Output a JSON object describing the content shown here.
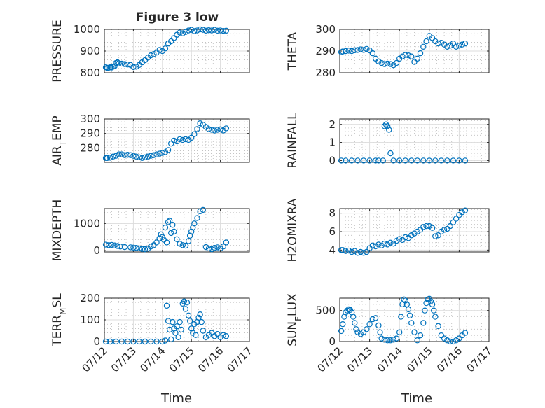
{
  "figure": {
    "title": "Figure 3 low",
    "xlabel": "Time"
  },
  "colors": {
    "marker": "#0072BD",
    "axis": "#262626",
    "grid": "#b0b0b0"
  },
  "chart_data": [
    {
      "type": "scatter",
      "ylabel": "PRESSURE",
      "ylim": [
        800,
        1000
      ],
      "yticks": [
        800,
        900,
        1000
      ],
      "xlim": [
        "07/12",
        "07/17"
      ],
      "xticklabels": [
        "07/12",
        "07/13",
        "07/14",
        "07/15",
        "07/16",
        "07/17"
      ],
      "grid": true,
      "x": [
        0.05,
        0.1,
        0.15,
        0.2,
        0.25,
        0.3,
        0.35,
        0.4,
        0.45,
        0.5,
        0.6,
        0.7,
        0.8,
        0.9,
        1.0,
        1.1,
        1.2,
        1.3,
        1.4,
        1.5,
        1.6,
        1.7,
        1.8,
        1.9,
        2.0,
        2.1,
        2.2,
        2.3,
        2.4,
        2.5,
        2.6,
        2.7,
        2.8,
        2.9,
        3.0,
        3.1,
        3.2,
        3.3,
        3.4,
        3.5,
        3.6,
        3.7,
        3.8,
        3.9,
        4.0,
        4.1,
        4.2
      ],
      "y": [
        825,
        822,
        823,
        825,
        824,
        828,
        830,
        845,
        848,
        843,
        842,
        840,
        838,
        836,
        826,
        828,
        836,
        848,
        858,
        870,
        880,
        886,
        893,
        905,
        900,
        912,
        935,
        945,
        960,
        975,
        985,
        982,
        988,
        995,
        998,
        992,
        995,
        1000,
        998,
        994,
        996,
        995,
        998,
        994,
        995,
        993,
        994
      ]
    },
    {
      "type": "scatter",
      "ylabel": "THETA",
      "ylim": [
        280,
        300
      ],
      "yticks": [
        280,
        290,
        300
      ],
      "xlim": [
        "07/12",
        "07/17"
      ],
      "xticklabels": [
        "07/12",
        "07/13",
        "07/14",
        "07/15",
        "07/16",
        "07/17"
      ],
      "grid": true,
      "x": [
        0.05,
        0.1,
        0.2,
        0.3,
        0.4,
        0.5,
        0.6,
        0.7,
        0.8,
        0.9,
        1.0,
        1.1,
        1.2,
        1.3,
        1.4,
        1.5,
        1.6,
        1.7,
        1.8,
        1.9,
        2.0,
        2.1,
        2.2,
        2.3,
        2.4,
        2.5,
        2.6,
        2.7,
        2.8,
        2.9,
        3.0,
        3.1,
        3.2,
        3.3,
        3.4,
        3.5,
        3.6,
        3.7,
        3.8,
        3.9,
        4.0,
        4.1,
        4.2
      ],
      "y": [
        289.5,
        289.8,
        290,
        290.2,
        290,
        290.4,
        290.5,
        290.8,
        290.5,
        291,
        290.3,
        289,
        286.5,
        285.2,
        284.5,
        284,
        284.2,
        284,
        283.5,
        284.5,
        286.5,
        287.5,
        288.2,
        288,
        287.5,
        285,
        286.5,
        289,
        292,
        294.5,
        297,
        296,
        294.5,
        293.5,
        293.8,
        293,
        292,
        292.5,
        293.5,
        292,
        292.5,
        293,
        293.5
      ]
    },
    {
      "type": "scatter",
      "ylabel": "AIR_TEMP",
      "ylim": [
        270,
        300
      ],
      "yticks": [
        280,
        290,
        300
      ],
      "xlim": [
        "07/12",
        "07/17"
      ],
      "xticklabels": [
        "07/12",
        "07/13",
        "07/14",
        "07/15",
        "07/16",
        "07/17"
      ],
      "grid": true,
      "x": [
        0.05,
        0.1,
        0.2,
        0.3,
        0.4,
        0.5,
        0.6,
        0.7,
        0.8,
        0.9,
        1.0,
        1.1,
        1.2,
        1.3,
        1.4,
        1.5,
        1.6,
        1.7,
        1.8,
        1.9,
        2.0,
        2.1,
        2.2,
        2.3,
        2.4,
        2.5,
        2.6,
        2.7,
        2.8,
        2.9,
        3.0,
        3.1,
        3.2,
        3.3,
        3.4,
        3.5,
        3.6,
        3.7,
        3.8,
        3.9,
        4.0,
        4.1,
        4.2
      ],
      "y": [
        273,
        273,
        273.2,
        274,
        274.5,
        275.5,
        275.5,
        275,
        275.2,
        275,
        274.5,
        274,
        273.5,
        273,
        273.5,
        274,
        274.5,
        275,
        275.5,
        276,
        276.5,
        277,
        278.5,
        283,
        285,
        284.5,
        286,
        285.5,
        286,
        285.5,
        287,
        289.5,
        293,
        297,
        296,
        294.5,
        293,
        292.5,
        292,
        292.5,
        292.8,
        292,
        293.5
      ]
    },
    {
      "type": "scatter",
      "ylabel": "RAINFALL",
      "ylim": [
        -0.1,
        2.3
      ],
      "yticks": [
        0,
        1,
        2
      ],
      "xlim": [
        "07/12",
        "07/17"
      ],
      "xticklabels": [
        "07/12",
        "07/13",
        "07/14",
        "07/15",
        "07/16",
        "07/17"
      ],
      "grid": true,
      "x": [
        0.05,
        0.2,
        0.4,
        0.6,
        0.8,
        1.0,
        1.2,
        1.3,
        1.45,
        1.5,
        1.55,
        1.6,
        1.65,
        1.7,
        1.8,
        2.0,
        2.2,
        2.4,
        2.6,
        2.8,
        3.0,
        3.2,
        3.4,
        3.6,
        3.8,
        4.0,
        4.2
      ],
      "y": [
        0,
        0,
        0,
        0,
        0,
        0,
        0,
        0,
        0,
        1.9,
        2.0,
        1.9,
        1.7,
        0.4,
        0,
        0,
        0,
        0,
        0,
        0,
        0,
        0,
        0,
        0,
        0,
        0,
        0
      ]
    },
    {
      "type": "scatter",
      "ylabel": "MIXDEPTH",
      "ylim": [
        -50,
        1550
      ],
      "yticks": [
        0,
        1000
      ],
      "xlim": [
        "07/12",
        "07/17"
      ],
      "xticklabels": [
        "07/12",
        "07/13",
        "07/14",
        "07/15",
        "07/16",
        "07/17"
      ],
      "grid": true,
      "x": [
        0.05,
        0.15,
        0.25,
        0.35,
        0.45,
        0.55,
        0.7,
        0.9,
        1.0,
        1.1,
        1.2,
        1.3,
        1.4,
        1.5,
        1.6,
        1.7,
        1.8,
        1.9,
        1.95,
        2.0,
        2.05,
        2.1,
        2.15,
        2.2,
        2.25,
        2.3,
        2.35,
        2.4,
        2.5,
        2.6,
        2.7,
        2.8,
        2.9,
        2.95,
        3.0,
        3.05,
        3.1,
        3.2,
        3.3,
        3.4,
        3.5,
        3.6,
        3.7,
        3.8,
        3.9,
        4.0,
        4.1,
        4.2
      ],
      "y": [
        220,
        200,
        210,
        190,
        170,
        150,
        130,
        120,
        110,
        100,
        80,
        60,
        50,
        70,
        150,
        200,
        300,
        450,
        600,
        500,
        400,
        850,
        300,
        1050,
        1100,
        650,
        950,
        700,
        420,
        250,
        200,
        180,
        350,
        550,
        700,
        850,
        1000,
        1200,
        1450,
        1500,
        130,
        80,
        50,
        100,
        120,
        80,
        150,
        300
      ]
    },
    {
      "type": "scatter",
      "ylabel": "H2OMIXRA",
      "ylim": [
        3.8,
        8.5
      ],
      "yticks": [
        4,
        6,
        8
      ],
      "xlim": [
        "07/12",
        "07/17"
      ],
      "xticklabels": [
        "07/12",
        "07/13",
        "07/14",
        "07/15",
        "07/16",
        "07/17"
      ],
      "grid": true,
      "x": [
        0.05,
        0.1,
        0.2,
        0.3,
        0.4,
        0.5,
        0.6,
        0.7,
        0.8,
        0.9,
        1.0,
        1.1,
        1.2,
        1.3,
        1.4,
        1.5,
        1.6,
        1.7,
        1.8,
        1.9,
        2.0,
        2.1,
        2.2,
        2.3,
        2.4,
        2.5,
        2.6,
        2.7,
        2.8,
        2.9,
        3.0,
        3.1,
        3.2,
        3.3,
        3.4,
        3.5,
        3.6,
        3.7,
        3.8,
        3.9,
        4.0,
        4.1,
        4.2
      ],
      "y": [
        4.0,
        4.0,
        3.9,
        3.95,
        3.8,
        3.9,
        3.7,
        3.8,
        3.7,
        3.8,
        4.2,
        4.5,
        4.4,
        4.6,
        4.5,
        4.7,
        4.6,
        4.8,
        4.7,
        5.0,
        5.2,
        5.1,
        5.4,
        5.3,
        5.6,
        5.8,
        6.0,
        6.2,
        6.5,
        6.6,
        6.6,
        6.4,
        5.5,
        5.6,
        6.0,
        6.2,
        6.3,
        6.6,
        7.0,
        7.4,
        7.8,
        8.1,
        8.3
      ]
    },
    {
      "type": "scatter",
      "ylabel": "TERR_MSL",
      "ylim": [
        0,
        200
      ],
      "yticks": [
        0,
        100,
        200
      ],
      "xlim": [
        "07/12",
        "07/17"
      ],
      "xticklabels": [
        "07/12",
        "07/13",
        "07/14",
        "07/15",
        "07/16",
        "07/17"
      ],
      "grid": true,
      "x": [
        0.05,
        0.2,
        0.4,
        0.6,
        0.8,
        1.0,
        1.2,
        1.4,
        1.6,
        1.8,
        2.0,
        2.1,
        2.15,
        2.2,
        2.25,
        2.3,
        2.35,
        2.4,
        2.45,
        2.5,
        2.55,
        2.6,
        2.65,
        2.7,
        2.75,
        2.8,
        2.85,
        2.9,
        2.95,
        3.0,
        3.05,
        3.1,
        3.15,
        3.2,
        3.25,
        3.3,
        3.35,
        3.4,
        3.5,
        3.6,
        3.7,
        3.8,
        3.9,
        4.0,
        4.1,
        4.2
      ],
      "y": [
        0,
        0,
        0,
        0,
        0,
        0,
        0,
        0,
        0,
        0,
        0,
        5,
        165,
        95,
        55,
        10,
        90,
        60,
        40,
        70,
        20,
        90,
        55,
        175,
        185,
        150,
        180,
        120,
        95,
        60,
        40,
        80,
        30,
        90,
        110,
        125,
        90,
        50,
        20,
        30,
        40,
        25,
        35,
        20,
        30,
        25
      ]
    },
    {
      "type": "scatter",
      "ylabel": "SUN_FLUX",
      "ylim": [
        0,
        700
      ],
      "yticks": [
        0,
        500
      ],
      "xlim": [
        "07/12",
        "07/17"
      ],
      "xticklabels": [
        "07/12",
        "07/13",
        "07/14",
        "07/15",
        "07/16",
        "07/17"
      ],
      "grid": true,
      "x": [
        0.05,
        0.1,
        0.15,
        0.2,
        0.25,
        0.3,
        0.35,
        0.4,
        0.45,
        0.5,
        0.55,
        0.6,
        0.7,
        0.8,
        0.9,
        1.0,
        1.1,
        1.2,
        1.3,
        1.35,
        1.4,
        1.5,
        1.6,
        1.7,
        1.8,
        1.9,
        2.0,
        2.05,
        2.1,
        2.15,
        2.2,
        2.25,
        2.3,
        2.35,
        2.4,
        2.5,
        2.6,
        2.7,
        2.8,
        2.85,
        2.9,
        2.95,
        3.0,
        3.05,
        3.1,
        3.15,
        3.2,
        3.3,
        3.4,
        3.5,
        3.6,
        3.7,
        3.8,
        3.9,
        4.0,
        4.1,
        4.2
      ],
      "y": [
        170,
        280,
        400,
        470,
        500,
        520,
        510,
        470,
        400,
        300,
        200,
        150,
        120,
        150,
        200,
        280,
        360,
        380,
        260,
        150,
        50,
        30,
        20,
        20,
        30,
        50,
        150,
        400,
        600,
        680,
        660,
        600,
        520,
        420,
        300,
        150,
        20,
        100,
        300,
        500,
        620,
        680,
        690,
        650,
        600,
        500,
        400,
        250,
        100,
        50,
        20,
        0,
        0,
        20,
        50,
        100,
        140
      ]
    }
  ]
}
